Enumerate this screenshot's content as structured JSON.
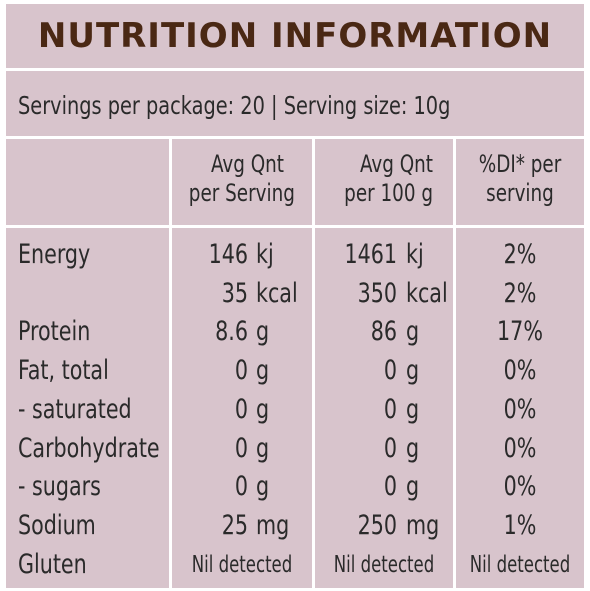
{
  "title": "NUTRITION INFORMATION",
  "servings": "Servings per package: 20 | Serving size: 10g",
  "headers": {
    "per_serving": [
      "Avg Qnt",
      "per Serving"
    ],
    "per_100g": [
      "Avg Qnt",
      "per 100 g"
    ],
    "di": [
      "%DI* per",
      "serving"
    ]
  },
  "rows": [
    {
      "label": "Energy",
      "serving_val": "146",
      "serving_unit": "kj",
      "per100_val": "1461",
      "per100_unit": "kj",
      "di": "2%"
    },
    {
      "label": "",
      "serving_val": "35",
      "serving_unit": "kcal",
      "per100_val": "350",
      "per100_unit": "kcal",
      "di": "2%"
    },
    {
      "label": "Protein",
      "serving_val": "8.6",
      "serving_unit": "g",
      "per100_val": "86",
      "per100_unit": "g",
      "di": "17%"
    },
    {
      "label": "Fat, total",
      "serving_val": "0",
      "serving_unit": "g",
      "per100_val": "0",
      "per100_unit": "g",
      "di": "0%"
    },
    {
      "label": "- saturated",
      "serving_val": "0",
      "serving_unit": "g",
      "per100_val": "0",
      "per100_unit": "g",
      "di": "0%"
    },
    {
      "label": "Carbohydrate",
      "serving_val": "0",
      "serving_unit": "g",
      "per100_val": "0",
      "per100_unit": "g",
      "di": "0%"
    },
    {
      "label": "- sugars",
      "serving_val": "0",
      "serving_unit": "g",
      "per100_val": "0",
      "per100_unit": "g",
      "di": "0%"
    },
    {
      "label": "Sodium",
      "serving_val": "25",
      "serving_unit": "mg",
      "per100_val": "250",
      "per100_unit": "mg",
      "di": "1%"
    }
  ],
  "gluten": {
    "label": "Gluten",
    "serving": "Nil detected",
    "per100": "Nil detected",
    "di": "Nil detected"
  },
  "colors": {
    "panel": "#d8c4cc",
    "title": "#4a2814",
    "text": "#2a2a2a",
    "rules": "#ffffff"
  }
}
